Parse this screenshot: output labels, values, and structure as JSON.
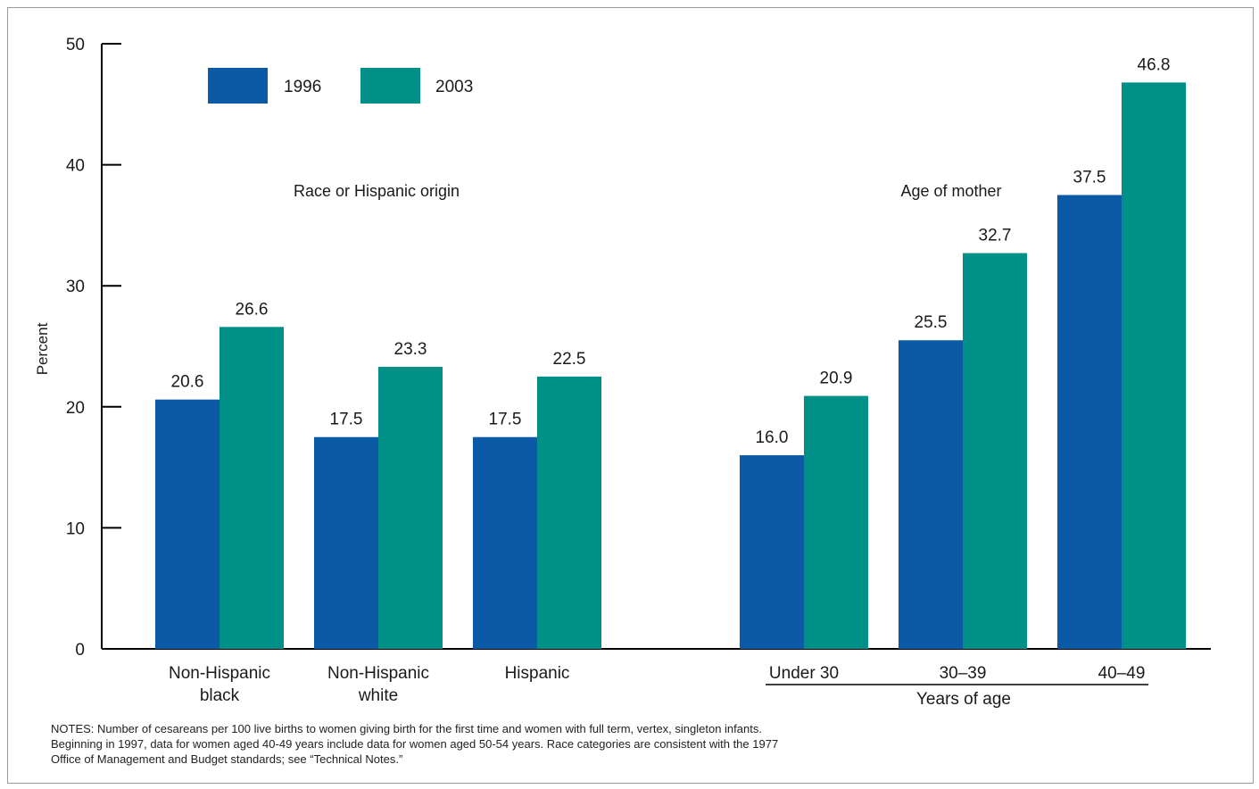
{
  "colors": {
    "s1996": "#0a5aa6",
    "s2003": "#009088",
    "axis": "#000000",
    "text": "#1a1a1a"
  },
  "chart_data": {
    "type": "bar",
    "ylabel": "Percent",
    "ylim": [
      0,
      50
    ],
    "yticks": [
      "0",
      "10",
      "20",
      "30",
      "40",
      "50"
    ],
    "legend_position": "top-left",
    "series": [
      {
        "name": "1996",
        "values": [
          20.6,
          17.5,
          17.5,
          16.0,
          25.5,
          37.5
        ],
        "labels": [
          "20.6",
          "17.5",
          "17.5",
          "16.0",
          "25.5",
          "37.5"
        ]
      },
      {
        "name": "2003",
        "values": [
          26.6,
          23.3,
          22.5,
          20.9,
          32.7,
          46.8
        ],
        "labels": [
          "26.6",
          "23.3",
          "22.5",
          "20.9",
          "32.7",
          "46.8"
        ]
      }
    ],
    "categories": [
      {
        "lines": [
          "Non-Hispanic",
          "black"
        ]
      },
      {
        "lines": [
          "Non-Hispanic",
          "white"
        ]
      },
      {
        "lines": [
          "Hispanic"
        ]
      },
      {
        "lines": [
          "Under 30"
        ]
      },
      {
        "lines": [
          "30–39"
        ]
      },
      {
        "lines": [
          "40–49"
        ]
      }
    ],
    "group_labels": [
      "Race or Hispanic origin",
      "Age of mother"
    ],
    "age_axis_label": "Years of age"
  },
  "notes": [
    "NOTES: Number of cesareans per 100 live births to women giving birth for the first time and women with full term, vertex, singleton infants.",
    "Beginning in 1997, data for women aged 40-49 years include data for women aged 50-54 years.  Race categories are consistent with the 1977",
    "Office of Management and Budget standards; see “Technical Notes.”"
  ]
}
